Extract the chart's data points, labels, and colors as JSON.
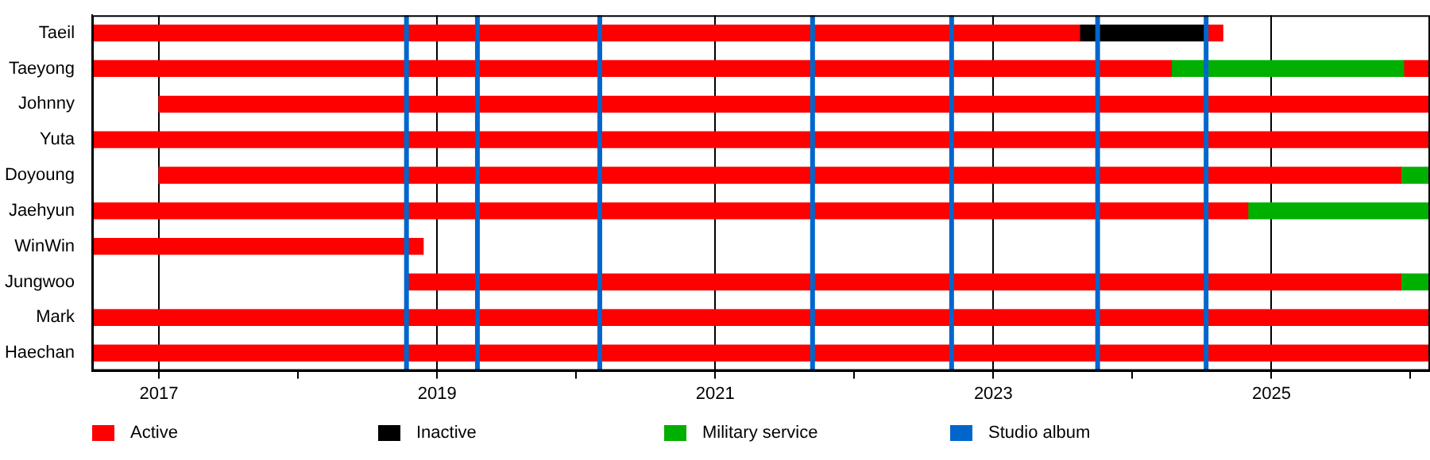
{
  "chart_data": {
    "type": "bar",
    "orientation": "horizontal",
    "categories": [
      "Taeil",
      "Taeyong",
      "Johnny",
      "Yuta",
      "Doyoung",
      "Jaehyun",
      "WinWin",
      "Jungwoo",
      "Mark",
      "Haechan"
    ],
    "series": [
      {
        "name": "Active",
        "color": "#ff0000",
        "base": [
          2016.52,
          2016.52,
          2017.0,
          2016.52,
          2017.0,
          2016.52,
          2016.52,
          2018.79,
          2016.52,
          2016.52
        ],
        "values": [
          7.1,
          7.76,
          9.14,
          9.62,
          8.93,
          8.31,
          2.38,
          7.14,
          9.62,
          9.62
        ]
      },
      {
        "name": "Inactive",
        "color": "#000000",
        "base": [
          2023.62,
          null,
          null,
          null,
          null,
          null,
          null,
          null,
          null,
          null
        ],
        "values": [
          0.91,
          null,
          null,
          null,
          null,
          null,
          null,
          null,
          null,
          null
        ]
      },
      {
        "name": "Military service",
        "color": "#00b000",
        "base": [
          null,
          2024.28,
          null,
          null,
          2025.93,
          2024.83,
          null,
          2025.93,
          null,
          null
        ],
        "values": [
          null,
          1.67,
          null,
          null,
          0.21,
          1.31,
          null,
          0.21,
          null,
          null
        ]
      },
      {
        "color": "#ff0000",
        "base": [
          2024.53,
          2025.95,
          null,
          null,
          null,
          null,
          null,
          null,
          null,
          null
        ],
        "values": [
          0.12,
          0.19,
          null,
          null,
          null,
          null,
          null,
          null,
          null,
          null
        ]
      }
    ],
    "xlim": [
      2016.52,
      2026.14
    ],
    "xticks": [
      2017,
      {
        "value": 2018,
        "label": null
      },
      2019,
      {
        "value": 2020,
        "label": null
      },
      2021,
      {
        "value": 2022,
        "label": null
      },
      2023,
      {
        "value": 2024,
        "label": null
      },
      2025,
      {
        "value": 2026,
        "label": null
      }
    ],
    "grid": "x",
    "legend": "bottom",
    "ref_lines": [
      {
        "axis": "x",
        "value": 2018.78,
        "label": "Studio album",
        "color": "#0066cc"
      },
      {
        "axis": "x",
        "value": 2019.29,
        "color": "#0066cc"
      },
      {
        "axis": "x",
        "value": 2020.17,
        "color": "#0066cc"
      },
      {
        "axis": "x",
        "value": 2021.7,
        "color": "#0066cc"
      },
      {
        "axis": "x",
        "value": 2022.7,
        "color": "#0066cc"
      },
      {
        "axis": "x",
        "value": 2023.75,
        "color": "#0066cc"
      },
      {
        "axis": "x",
        "value": 2024.53,
        "color": "#0066cc"
      }
    ]
  }
}
